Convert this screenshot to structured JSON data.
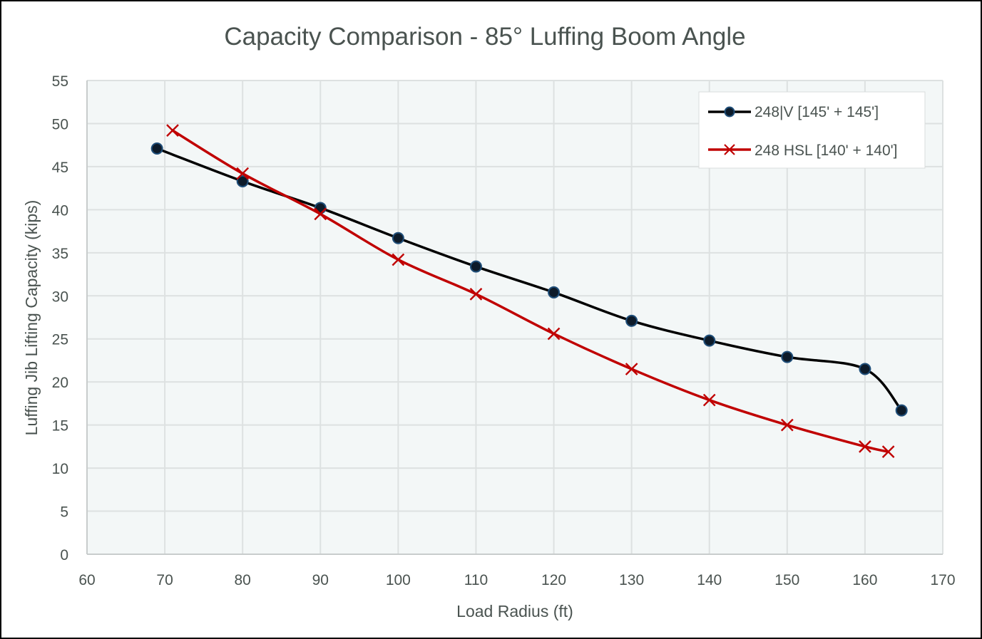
{
  "chart_data": {
    "type": "line",
    "title": "Capacity Comparison - 85° Luffing Boom Angle",
    "xlabel": "Load Radius (ft)",
    "ylabel": "Luffing Jib Lifting Capacity (kips)",
    "xlim": [
      60,
      170
    ],
    "ylim": [
      0,
      55
    ],
    "xticks": [
      60,
      70,
      80,
      90,
      100,
      110,
      120,
      130,
      140,
      150,
      160,
      170
    ],
    "yticks": [
      0,
      5,
      10,
      15,
      20,
      25,
      30,
      35,
      40,
      45,
      50,
      55
    ],
    "grid": true,
    "legend_position": "top-right",
    "plot_background": "#f3f7f7",
    "series": [
      {
        "name": "248|V [145' + 145']",
        "color": "#000000",
        "marker": "circle",
        "marker_fill": "#0d1b2a",
        "marker_edge": "#1f4e79",
        "smooth": true,
        "x": [
          69,
          80,
          90,
          100,
          110,
          120,
          130,
          140,
          150,
          160,
          164.7
        ],
        "y": [
          47.1,
          43.3,
          40.2,
          36.7,
          33.4,
          30.4,
          27.1,
          24.8,
          22.9,
          21.5,
          16.7
        ]
      },
      {
        "name": "248 HSL [140' + 140']",
        "color": "#c00000",
        "marker": "x",
        "smooth": true,
        "x": [
          71,
          80,
          90,
          100,
          110,
          120,
          130,
          140,
          150,
          160,
          163
        ],
        "y": [
          49.2,
          44.2,
          39.5,
          34.2,
          30.2,
          25.6,
          21.5,
          17.9,
          15.0,
          12.5,
          11.9
        ]
      }
    ]
  }
}
